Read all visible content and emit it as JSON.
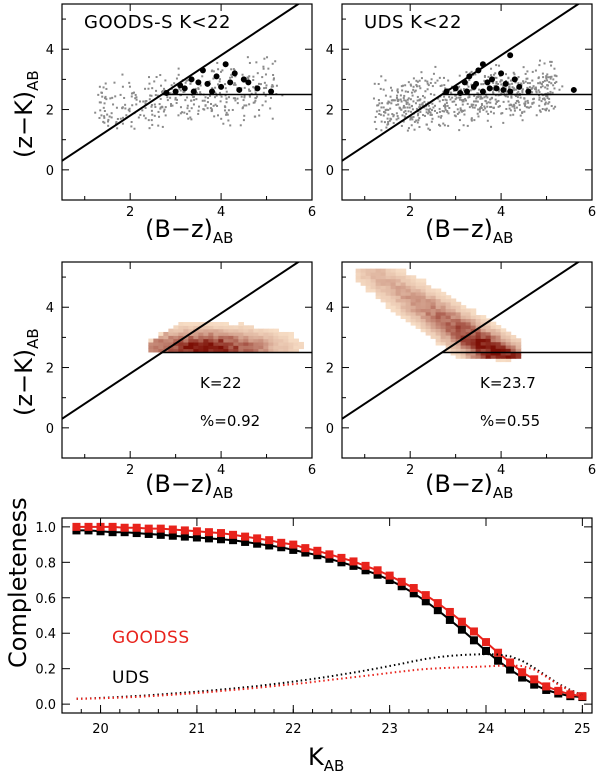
{
  "figure": {
    "y_label_color_color": "(z−K)",
    "y_label_color_sub": "AB",
    "x_label_color_color": "(B−z)",
    "x_label_color_sub": "AB",
    "completeness_ylabel": "Completeness",
    "completeness_xlabel": "K",
    "completeness_xlabel_sub": "AB"
  },
  "chart_data": [
    {
      "type": "scatter",
      "panel": "top-left",
      "title": "GOODS-S K<22",
      "xlim": [
        0.5,
        6
      ],
      "ylim": [
        -1,
        5.5
      ],
      "xticks": [
        2,
        4,
        6
      ],
      "yticks": [
        0,
        2,
        4
      ],
      "selection_lines": {
        "diagonal": {
          "slope": 1,
          "intercept": -0.2
        },
        "horizontal": {
          "y": 2.5,
          "x_min": 2.7,
          "x_max": 6
        }
      },
      "selected_points": [
        [
          2.8,
          2.55
        ],
        [
          3.0,
          2.6
        ],
        [
          3.2,
          2.7
        ],
        [
          3.35,
          3.0
        ],
        [
          3.4,
          2.6
        ],
        [
          3.6,
          3.3
        ],
        [
          3.7,
          2.85
        ],
        [
          3.8,
          2.6
        ],
        [
          3.9,
          3.1
        ],
        [
          4.0,
          2.75
        ],
        [
          4.1,
          3.5
        ],
        [
          4.2,
          2.9
        ],
        [
          4.3,
          3.2
        ],
        [
          4.4,
          2.65
        ],
        [
          4.6,
          2.9
        ],
        [
          4.8,
          2.7
        ],
        [
          3.1,
          2.8
        ],
        [
          3.5,
          2.9
        ],
        [
          4.5,
          3.0
        ],
        [
          5.1,
          2.6
        ]
      ],
      "background_points_note": "grey dots: non-selected galaxies (approx)",
      "background_seed": 7,
      "background_count": 380
    },
    {
      "type": "scatter",
      "panel": "top-right",
      "title": "UDS K<22",
      "xlim": [
        0.5,
        6
      ],
      "ylim": [
        -1,
        5.5
      ],
      "xticks": [
        2,
        4,
        6
      ],
      "yticks": [
        0,
        2,
        4
      ],
      "selection_lines": {
        "diagonal": {
          "slope": 1,
          "intercept": -0.2
        },
        "horizontal": {
          "y": 2.5,
          "x_min": 2.7,
          "x_max": 6
        }
      },
      "selected_points": [
        [
          2.8,
          2.6
        ],
        [
          3.0,
          2.7
        ],
        [
          3.1,
          2.55
        ],
        [
          3.2,
          2.9
        ],
        [
          3.3,
          3.1
        ],
        [
          3.4,
          2.75
        ],
        [
          3.5,
          3.3
        ],
        [
          3.6,
          2.6
        ],
        [
          3.7,
          2.9
        ],
        [
          3.8,
          3.0
        ],
        [
          3.9,
          2.7
        ],
        [
          4.0,
          3.2
        ],
        [
          4.1,
          2.85
        ],
        [
          4.2,
          2.6
        ],
        [
          4.3,
          3.0
        ],
        [
          4.4,
          2.75
        ],
        [
          4.2,
          3.8
        ],
        [
          3.6,
          3.5
        ],
        [
          4.6,
          2.6
        ],
        [
          5.6,
          2.65
        ],
        [
          3.25,
          2.6
        ],
        [
          3.45,
          2.85
        ],
        [
          3.75,
          2.7
        ],
        [
          4.05,
          2.65
        ]
      ],
      "background_points_note": "grey dots: non-selected galaxies (approx)",
      "background_seed": 13,
      "background_count": 700
    },
    {
      "type": "heatmap",
      "panel": "middle-left",
      "xlim": [
        0.5,
        6
      ],
      "ylim": [
        -1,
        5.5
      ],
      "xticks": [
        2,
        4,
        6
      ],
      "yticks": [
        0,
        2,
        4
      ],
      "annotation_k": "K=22",
      "annotation_frac": "%=0.92",
      "density_center": [
        3.6,
        2.6
      ],
      "density_extent_x": [
        2.4,
        5.8
      ],
      "density_extent_y": [
        2.3,
        3.9
      ],
      "selection_lines": {
        "diagonal": {
          "slope": 1,
          "intercept": -0.2
        },
        "horizontal": {
          "y": 2.5,
          "x_min": 2.7,
          "x_max": 6
        }
      }
    },
    {
      "type": "heatmap",
      "panel": "middle-right",
      "xlim": [
        0.5,
        6
      ],
      "ylim": [
        -1,
        5.5
      ],
      "xticks": [
        2,
        4,
        6
      ],
      "yticks": [
        0,
        2,
        4
      ],
      "annotation_k": "K=23.7",
      "annotation_frac": "%=0.55",
      "density_center": [
        3.5,
        2.8
      ],
      "density_extent_x": [
        0.8,
        4.4
      ],
      "density_extent_y": [
        2.2,
        5.2
      ],
      "selection_lines": {
        "diagonal": {
          "slope": 1,
          "intercept": -0.2
        },
        "horizontal": {
          "y": 2.5,
          "x_min": 2.7,
          "x_max": 6
        }
      }
    },
    {
      "type": "line",
      "panel": "bottom",
      "xlabel": "K_AB",
      "ylabel": "Completeness",
      "xlim": [
        19.6,
        25.1
      ],
      "ylim": [
        -0.05,
        1.05
      ],
      "xticks": [
        20,
        21,
        22,
        23,
        24,
        25
      ],
      "yticks": [
        0.0,
        0.2,
        0.4,
        0.6,
        0.8,
        1.0
      ],
      "ytick_labels": [
        "0.0",
        "0.2",
        "0.4",
        "0.6",
        "0.8",
        "1.0"
      ],
      "legend": [
        {
          "name": "GOODSS",
          "color": "#e8231c"
        },
        {
          "name": "UDS",
          "color": "#000000"
        }
      ],
      "x": [
        19.75,
        19.875,
        20,
        20.125,
        20.25,
        20.375,
        20.5,
        20.625,
        20.75,
        20.875,
        21,
        21.125,
        21.25,
        21.375,
        21.5,
        21.625,
        21.75,
        21.875,
        22,
        22.125,
        22.25,
        22.375,
        22.5,
        22.625,
        22.75,
        22.875,
        23,
        23.125,
        23.25,
        23.375,
        23.5,
        23.625,
        23.75,
        23.875,
        24,
        24.125,
        24.25,
        24.375,
        24.5,
        24.625,
        24.75,
        24.875,
        25
      ],
      "series": [
        {
          "name": "UDS",
          "color": "#000000",
          "style": "solid-squares",
          "values": [
            0.98,
            0.98,
            0.975,
            0.97,
            0.97,
            0.965,
            0.96,
            0.955,
            0.95,
            0.945,
            0.94,
            0.935,
            0.93,
            0.925,
            0.915,
            0.905,
            0.895,
            0.885,
            0.87,
            0.855,
            0.84,
            0.82,
            0.8,
            0.78,
            0.755,
            0.73,
            0.7,
            0.665,
            0.625,
            0.58,
            0.53,
            0.475,
            0.42,
            0.36,
            0.3,
            0.245,
            0.195,
            0.15,
            0.11,
            0.08,
            0.06,
            0.045,
            0.04
          ]
        },
        {
          "name": "GOODSS",
          "color": "#e8231c",
          "style": "solid-squares",
          "values": [
            1.0,
            1.0,
            1.0,
            1.0,
            0.995,
            0.995,
            0.99,
            0.99,
            0.985,
            0.98,
            0.975,
            0.97,
            0.965,
            0.955,
            0.945,
            0.935,
            0.925,
            0.91,
            0.9,
            0.88,
            0.865,
            0.845,
            0.825,
            0.805,
            0.78,
            0.755,
            0.725,
            0.69,
            0.655,
            0.615,
            0.57,
            0.52,
            0.465,
            0.41,
            0.35,
            0.29,
            0.235,
            0.18,
            0.14,
            0.1,
            0.075,
            0.055,
            0.045
          ]
        },
        {
          "name": "UDS-dotted",
          "color": "#000000",
          "style": "dotted",
          "values": [
            0.03,
            0.032,
            0.035,
            0.038,
            0.042,
            0.046,
            0.05,
            0.055,
            0.06,
            0.065,
            0.07,
            0.076,
            0.082,
            0.088,
            0.095,
            0.102,
            0.11,
            0.118,
            0.127,
            0.136,
            0.146,
            0.156,
            0.167,
            0.178,
            0.19,
            0.202,
            0.215,
            0.228,
            0.242,
            0.255,
            0.265,
            0.272,
            0.277,
            0.28,
            0.282,
            0.28,
            0.27,
            0.245,
            0.205,
            0.16,
            0.115,
            0.08,
            0.05
          ]
        },
        {
          "name": "GOODSS-dotted",
          "color": "#e8231c",
          "style": "dotted",
          "values": [
            0.03,
            0.031,
            0.033,
            0.035,
            0.038,
            0.041,
            0.045,
            0.049,
            0.053,
            0.058,
            0.063,
            0.068,
            0.074,
            0.08,
            0.086,
            0.092,
            0.099,
            0.106,
            0.113,
            0.12,
            0.128,
            0.136,
            0.144,
            0.152,
            0.16,
            0.168,
            0.176,
            0.184,
            0.192,
            0.198,
            0.202,
            0.205,
            0.208,
            0.21,
            0.213,
            0.216,
            0.218,
            0.215,
            0.195,
            0.155,
            0.11,
            0.075,
            0.05
          ]
        }
      ]
    }
  ]
}
